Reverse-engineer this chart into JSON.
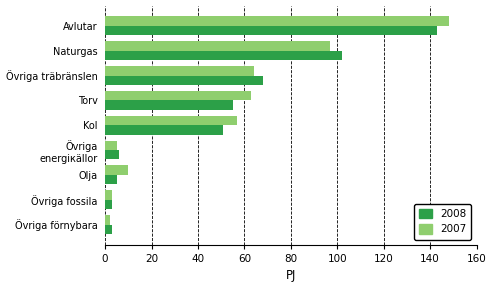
{
  "categories": [
    "Avlutar",
    "Naturgas",
    "Övriga träbränslen",
    "Torv",
    "Kol",
    "Övriga\nenergiкällor",
    "Olja",
    "Övriga fossila",
    "Övriga förnybara"
  ],
  "values_2008": [
    143,
    102,
    68,
    55,
    51,
    6,
    5,
    3,
    3
  ],
  "values_2007": [
    148,
    97,
    64,
    63,
    57,
    5,
    10,
    3,
    2
  ],
  "color_2008": "#2ca048",
  "color_2007": "#8fce6e",
  "xlabel": "PJ",
  "legend_2008": "2008",
  "legend_2007": "2007",
  "xlim": [
    0,
    160
  ],
  "xticks": [
    0,
    20,
    40,
    60,
    80,
    100,
    120,
    140,
    160
  ],
  "background_color": "#ffffff"
}
